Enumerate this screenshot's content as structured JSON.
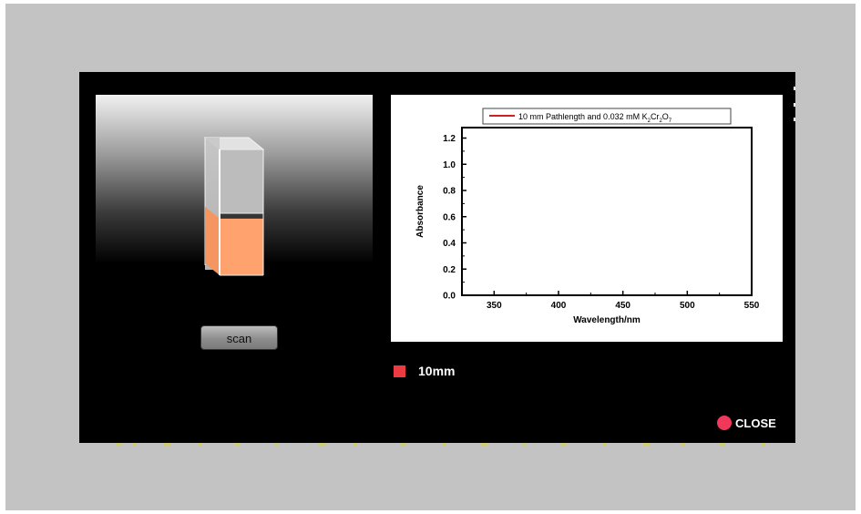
{
  "actions": {
    "scan_label": "scan",
    "close_label": "CLOSE"
  },
  "selector": {
    "label": "10mm",
    "color": "#ee3a43"
  },
  "sample": {
    "liquid_color": "#ffa26e",
    "fill_fraction": 0.45
  },
  "colors": {
    "backdrop": "#c3c3c3",
    "modal": "#000000",
    "close_dot": "#f0385a"
  },
  "chart_data": {
    "type": "line",
    "xlabel": "Wavelength/nm",
    "ylabel": "Absorbance",
    "xlim": [
      325,
      550
    ],
    "ylim": [
      0,
      1.28
    ],
    "xticks": [
      350,
      400,
      450,
      500,
      550
    ],
    "yticks": [
      0.0,
      0.2,
      0.4,
      0.6,
      0.8,
      1.0,
      1.2
    ],
    "xtick_labels": [
      "350",
      "400",
      "450",
      "500",
      "550"
    ],
    "ytick_labels": [
      "0.0",
      "0.2",
      "0.4",
      "0.6",
      "0.8",
      "1.0",
      "1.2"
    ],
    "legend_placement": "top",
    "legend_color": "#cc2222",
    "legend_text_main": "10 mm Pathlength and 0.032 mM K",
    "legend_sub_2": "2",
    "legend_text_cr": "Cr",
    "legend_sub_2b": "2",
    "legend_text_o": "O",
    "legend_sub_7": "7",
    "grid": false,
    "series": []
  }
}
